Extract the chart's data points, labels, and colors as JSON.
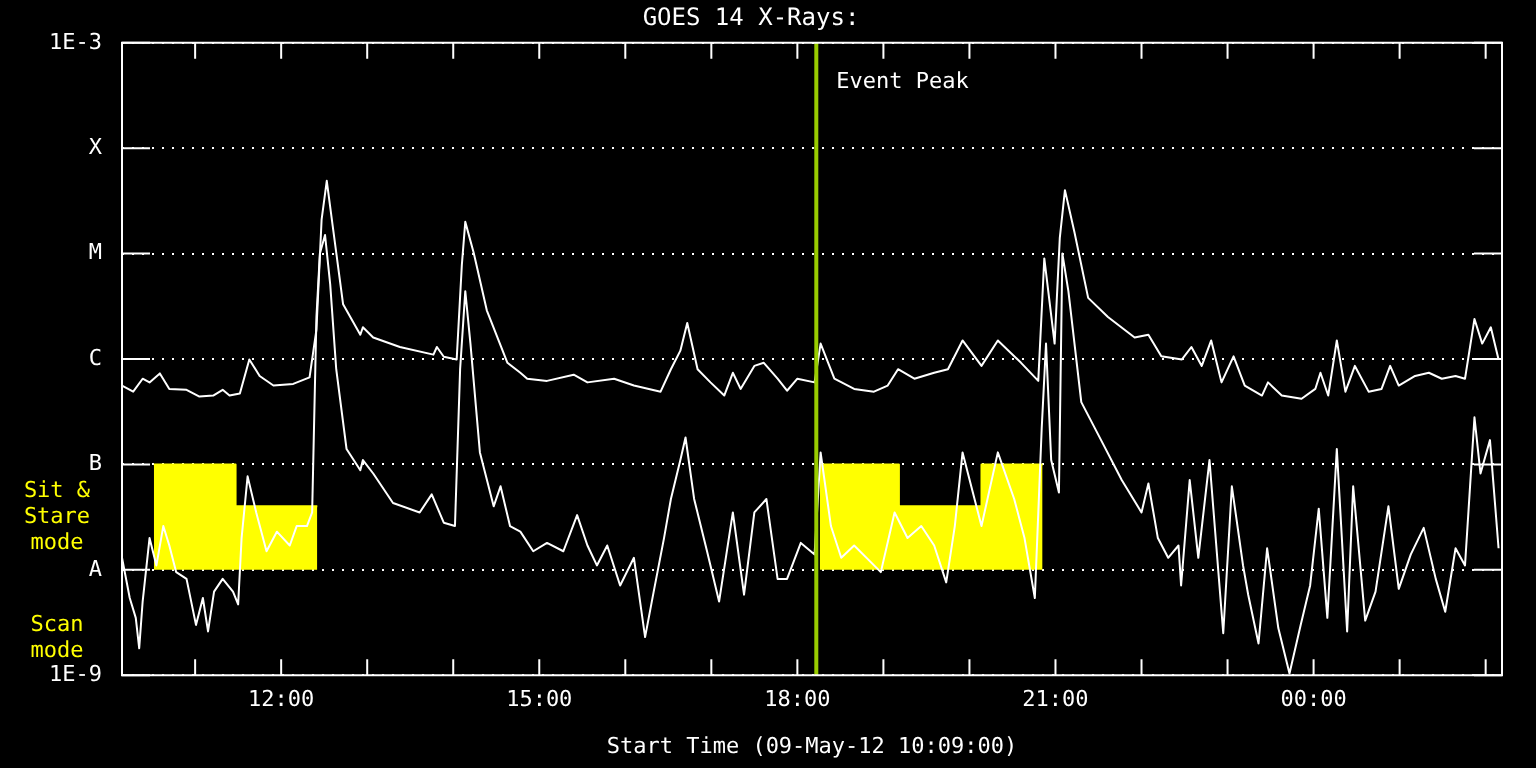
{
  "chart_data": {
    "type": "line",
    "title": "GOES 14 X-Rays:",
    "xlabel": "Start Time (09-May-12 10:09:00)",
    "xlim": [
      10.15,
      26.19
    ],
    "xticks": [
      {
        "value": 11,
        "label": null
      },
      {
        "value": 12,
        "label": "12:00"
      },
      {
        "value": 13,
        "label": null
      },
      {
        "value": 14,
        "label": null
      },
      {
        "value": 15,
        "label": "15:00"
      },
      {
        "value": 16,
        "label": null
      },
      {
        "value": 17,
        "label": null
      },
      {
        "value": 18,
        "label": "18:00"
      },
      {
        "value": 19,
        "label": null
      },
      {
        "value": 20,
        "label": null
      },
      {
        "value": 21,
        "label": "21:00"
      },
      {
        "value": 22,
        "label": null
      },
      {
        "value": 23,
        "label": null
      },
      {
        "value": 24,
        "label": "00:00"
      },
      {
        "value": 25,
        "label": null
      },
      {
        "value": 26,
        "label": null
      }
    ],
    "ylim": [
      1e-09,
      0.001
    ],
    "yticks": [
      {
        "value": 1e-09,
        "label": "1E-9"
      },
      {
        "value": 1e-08,
        "label": "A"
      },
      {
        "value": 1e-07,
        "label": "B"
      },
      {
        "value": 1e-06,
        "label": "C"
      },
      {
        "value": 1e-05,
        "label": "M"
      },
      {
        "value": 0.0001,
        "label": "X"
      },
      {
        "value": 0.001,
        "label": "1E-3"
      }
    ],
    "log": true,
    "grid": "y",
    "ref_lines": [
      {
        "axis": "x",
        "value": 18.22,
        "label": "Event Peak",
        "color": "#99cc00"
      }
    ],
    "annotations": [
      "Sit & Stare mode",
      "Scan mode"
    ],
    "series": [
      {
        "type": "line",
        "color": "#ffff00",
        "x": [
          10.52,
          11.47,
          11.47,
          12.42,
          15,
          18.26,
          19.18,
          19.18,
          20.14,
          20.14,
          20.85
        ],
        "values": [
          1e-07,
          1e-07,
          4e-08,
          4e-08,
          null,
          1e-07,
          1e-07,
          4e-08,
          4e-08,
          1e-07,
          1e-07
        ],
        "lower": [
          1e-08,
          1e-08,
          1e-08,
          1e-08,
          null,
          1e-08,
          1e-08,
          1e-08,
          1e-08,
          1e-08,
          1e-08
        ],
        "upper": [
          1e-07,
          1e-07,
          4e-08,
          4e-08,
          null,
          1e-07,
          1e-07,
          4e-08,
          4e-08,
          1e-07,
          1e-07
        ]
      },
      {
        "color": "#ffffff",
        "x": [
          10.15,
          10.28,
          10.39,
          10.47,
          10.59,
          10.7,
          10.9,
          11.05,
          11.21,
          11.32,
          11.4,
          11.52,
          11.63,
          11.75,
          11.91,
          12.14,
          12.33,
          12.41,
          12.47,
          12.53,
          12.6,
          12.72,
          12.92,
          12.95,
          13.07,
          13.38,
          13.77,
          13.81,
          13.89,
          14.04,
          14.1,
          14.14,
          14.24,
          14.39,
          14.63,
          14.78,
          14.86,
          15.09,
          15.4,
          15.56,
          15.87,
          16.1,
          16.41,
          16.53,
          16.64,
          16.72,
          16.84,
          16.99,
          17.15,
          17.25,
          17.34,
          17.5,
          17.61,
          17.77,
          17.88,
          18.0,
          18.2,
          18.27,
          18.43,
          18.66,
          18.89,
          19.05,
          19.17,
          19.36,
          19.59,
          19.75,
          19.92,
          20.14,
          20.33,
          20.6,
          20.8,
          20.87,
          20.99,
          21.05,
          21.11,
          21.22,
          21.38,
          21.61,
          21.92,
          22.08,
          22.23,
          22.47,
          22.58,
          22.7,
          22.81,
          22.93,
          23.07,
          23.2,
          23.4,
          23.47,
          23.63,
          23.86,
          24.02,
          24.08,
          24.17,
          24.27,
          24.37,
          24.48,
          24.64,
          24.79,
          24.89,
          24.99,
          25.18,
          25.34,
          25.49,
          25.65,
          25.76,
          25.87,
          25.96,
          26.06,
          26.15
        ],
        "values": [
          5.6e-07,
          4.9e-07,
          6.5e-07,
          6e-07,
          7.3e-07,
          5.2e-07,
          5.1e-07,
          4.4e-07,
          4.5e-07,
          5.1e-07,
          4.5e-07,
          4.7e-07,
          9.9e-07,
          6.9e-07,
          5.6e-07,
          5.8e-07,
          6.7e-07,
          1.9e-06,
          2.1e-05,
          4.9e-05,
          1.8e-05,
          3.3e-06,
          1.7e-06,
          2e-06,
          1.6e-06,
          1.3e-06,
          1.1e-06,
          1.3e-06,
          1.05e-06,
          9.9e-07,
          7.8e-06,
          2e-05,
          1e-05,
          2.9e-06,
          9.2e-07,
          7.4e-07,
          6.5e-07,
          6.2e-07,
          7.1e-07,
          6e-07,
          6.5e-07,
          5.6e-07,
          4.9e-07,
          8e-07,
          1.2e-06,
          2.2e-06,
          8e-07,
          6e-07,
          4.5e-07,
          7.4e-07,
          5.2e-07,
          8.6e-07,
          9.2e-07,
          6.5e-07,
          5e-07,
          6.5e-07,
          6e-07,
          1.4e-06,
          6.5e-07,
          5.2e-07,
          4.9e-07,
          5.6e-07,
          8e-07,
          6.5e-07,
          7.4e-07,
          8e-07,
          1.5e-06,
          8.6e-07,
          1.5e-06,
          9.2e-07,
          6.2e-07,
          9e-06,
          1.4e-06,
          1.4e-05,
          4e-05,
          1.6e-05,
          3.8e-06,
          2.5e-06,
          1.6e-06,
          1.7e-06,
          1.06e-06,
          9.9e-07,
          1.3e-06,
          8.6e-07,
          1.5e-06,
          6e-07,
          1.06e-06,
          5.6e-07,
          4.5e-07,
          6e-07,
          4.5e-07,
          4.2e-07,
          5.2e-07,
          7.4e-07,
          4.5e-07,
          1.5e-06,
          4.9e-07,
          8.6e-07,
          4.9e-07,
          5.2e-07,
          8.6e-07,
          5.6e-07,
          6.9e-07,
          7.4e-07,
          6.5e-07,
          6.9e-07,
          6.5e-07,
          2.4e-06,
          1.4e-06,
          2e-06,
          9.9e-07
        ]
      },
      {
        "color": "#ffffff",
        "x": [
          10.15,
          10.24,
          10.31,
          10.35,
          10.39,
          10.47,
          10.55,
          10.63,
          10.7,
          10.78,
          10.9,
          11.01,
          11.09,
          11.15,
          11.22,
          11.32,
          11.44,
          11.5,
          11.54,
          11.61,
          11.71,
          11.83,
          11.95,
          12.1,
          12.18,
          12.3,
          12.36,
          12.41,
          12.45,
          12.51,
          12.57,
          12.64,
          12.76,
          12.92,
          12.95,
          13.07,
          13.3,
          13.61,
          13.75,
          13.89,
          14.02,
          14.08,
          14.14,
          14.2,
          14.31,
          14.47,
          14.55,
          14.66,
          14.78,
          14.93,
          15.09,
          15.28,
          15.44,
          15.56,
          15.67,
          15.79,
          15.94,
          16.1,
          16.23,
          16.33,
          16.45,
          16.53,
          16.64,
          16.7,
          16.8,
          16.95,
          17.09,
          17.25,
          17.38,
          17.5,
          17.64,
          17.77,
          17.88,
          18.04,
          18.2,
          18.27,
          18.39,
          18.51,
          18.66,
          18.97,
          19.13,
          19.28,
          19.44,
          19.59,
          19.73,
          19.83,
          19.92,
          20.14,
          20.33,
          20.52,
          20.64,
          20.76,
          20.84,
          20.89,
          20.95,
          21.04,
          21.08,
          21.15,
          21.3,
          21.53,
          21.77,
          22.0,
          22.08,
          22.19,
          22.31,
          22.43,
          22.46,
          22.56,
          22.66,
          22.79,
          22.95,
          23.05,
          23.18,
          23.24,
          23.36,
          23.46,
          23.59,
          23.72,
          23.85,
          23.96,
          24.06,
          24.16,
          24.27,
          24.39,
          24.46,
          24.6,
          24.72,
          24.87,
          24.99,
          25.13,
          25.28,
          25.42,
          25.53,
          25.65,
          25.76,
          25.87,
          25.94,
          26.05,
          26.15
        ],
        "values": [
          1.3e-08,
          5.4e-09,
          3.5e-09,
          1.8e-09,
          5e-09,
          2e-08,
          1.1e-08,
          2.6e-08,
          1.7e-08,
          9.5e-09,
          8.2e-09,
          3e-09,
          5.4e-09,
          2.6e-09,
          6.2e-09,
          8.2e-09,
          6.2e-09,
          4.7e-09,
          2e-08,
          7.7e-08,
          3.5e-08,
          1.5e-08,
          2.3e-08,
          1.7e-08,
          2.6e-08,
          2.6e-08,
          3.5e-08,
          2.5e-06,
          1e-05,
          1.5e-05,
          5.1e-06,
          8e-07,
          1.4e-07,
          8.8e-08,
          1.1e-07,
          8.2e-08,
          4.3e-08,
          3.5e-08,
          5.2e-08,
          2.8e-08,
          2.6e-08,
          8e-07,
          4.4e-06,
          1.4e-06,
          1.3e-07,
          4e-08,
          6.2e-08,
          2.6e-08,
          2.3e-08,
          1.5e-08,
          1.8e-08,
          1.5e-08,
          3.3e-08,
          1.7e-08,
          1.1e-08,
          1.7e-08,
          7.1e-09,
          1.3e-08,
          2.3e-09,
          6.2e-09,
          2e-08,
          4.7e-08,
          1.1e-07,
          1.8e-07,
          4.7e-08,
          1.5e-08,
          5e-09,
          3.5e-08,
          5.8e-09,
          3.5e-08,
          4.7e-08,
          8.2e-09,
          8.2e-09,
          1.8e-08,
          1.4e-08,
          1.3e-07,
          2.6e-08,
          1.3e-08,
          1.7e-08,
          9.5e-09,
          3.5e-08,
          2e-08,
          2.6e-08,
          1.7e-08,
          7.6e-09,
          2.6e-08,
          1.3e-07,
          2.6e-08,
          1.3e-07,
          4.7e-08,
          2e-08,
          5.4e-09,
          2.2e-07,
          1.4e-06,
          1.1e-07,
          5.4e-08,
          1e-05,
          4.4e-06,
          3.9e-07,
          1.7e-07,
          7.1e-08,
          3.5e-08,
          6.6e-08,
          2e-08,
          1.3e-08,
          1.7e-08,
          7.1e-09,
          7.1e-08,
          1.3e-08,
          1.1e-07,
          2.5e-09,
          6.2e-08,
          1.1e-08,
          5.8e-09,
          2e-09,
          1.6e-08,
          2.8e-09,
          1.04e-09,
          3e-09,
          7.1e-09,
          3.8e-08,
          3.5e-09,
          1.4e-07,
          2.6e-09,
          6.2e-08,
          3.3e-09,
          6.2e-09,
          4e-08,
          6.6e-09,
          1.4e-08,
          2.5e-08,
          8.2e-09,
          4e-09,
          1.6e-08,
          1.1e-08,
          2.8e-07,
          8.2e-08,
          1.7e-07,
          1.6e-08
        ]
      }
    ]
  }
}
